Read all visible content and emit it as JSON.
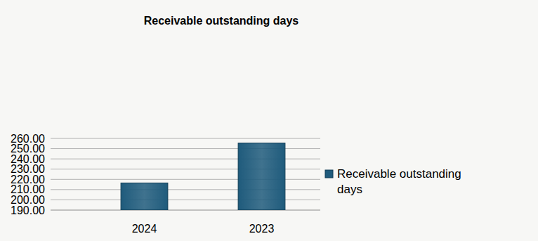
{
  "chart_data": {
    "type": "bar",
    "title": "Receivable outstanding days",
    "categories": [
      "2024",
      "2023"
    ],
    "series": [
      {
        "name": "Receivable outstanding days",
        "color": "#1f5b7c",
        "values": [
          216.5,
          255.5
        ]
      }
    ],
    "ylim": [
      190,
      260
    ],
    "yticks": [
      {
        "value": 190,
        "label": "190.00"
      },
      {
        "value": 200,
        "label": "200.00"
      },
      {
        "value": 210,
        "label": "210.00"
      },
      {
        "value": 220,
        "label": "220.00"
      },
      {
        "value": 230,
        "label": "230.00"
      },
      {
        "value": 240,
        "label": "240.00"
      },
      {
        "value": 250,
        "label": "250.00"
      },
      {
        "value": 260,
        "label": "260.00"
      }
    ],
    "grid": true,
    "legend": "right"
  }
}
